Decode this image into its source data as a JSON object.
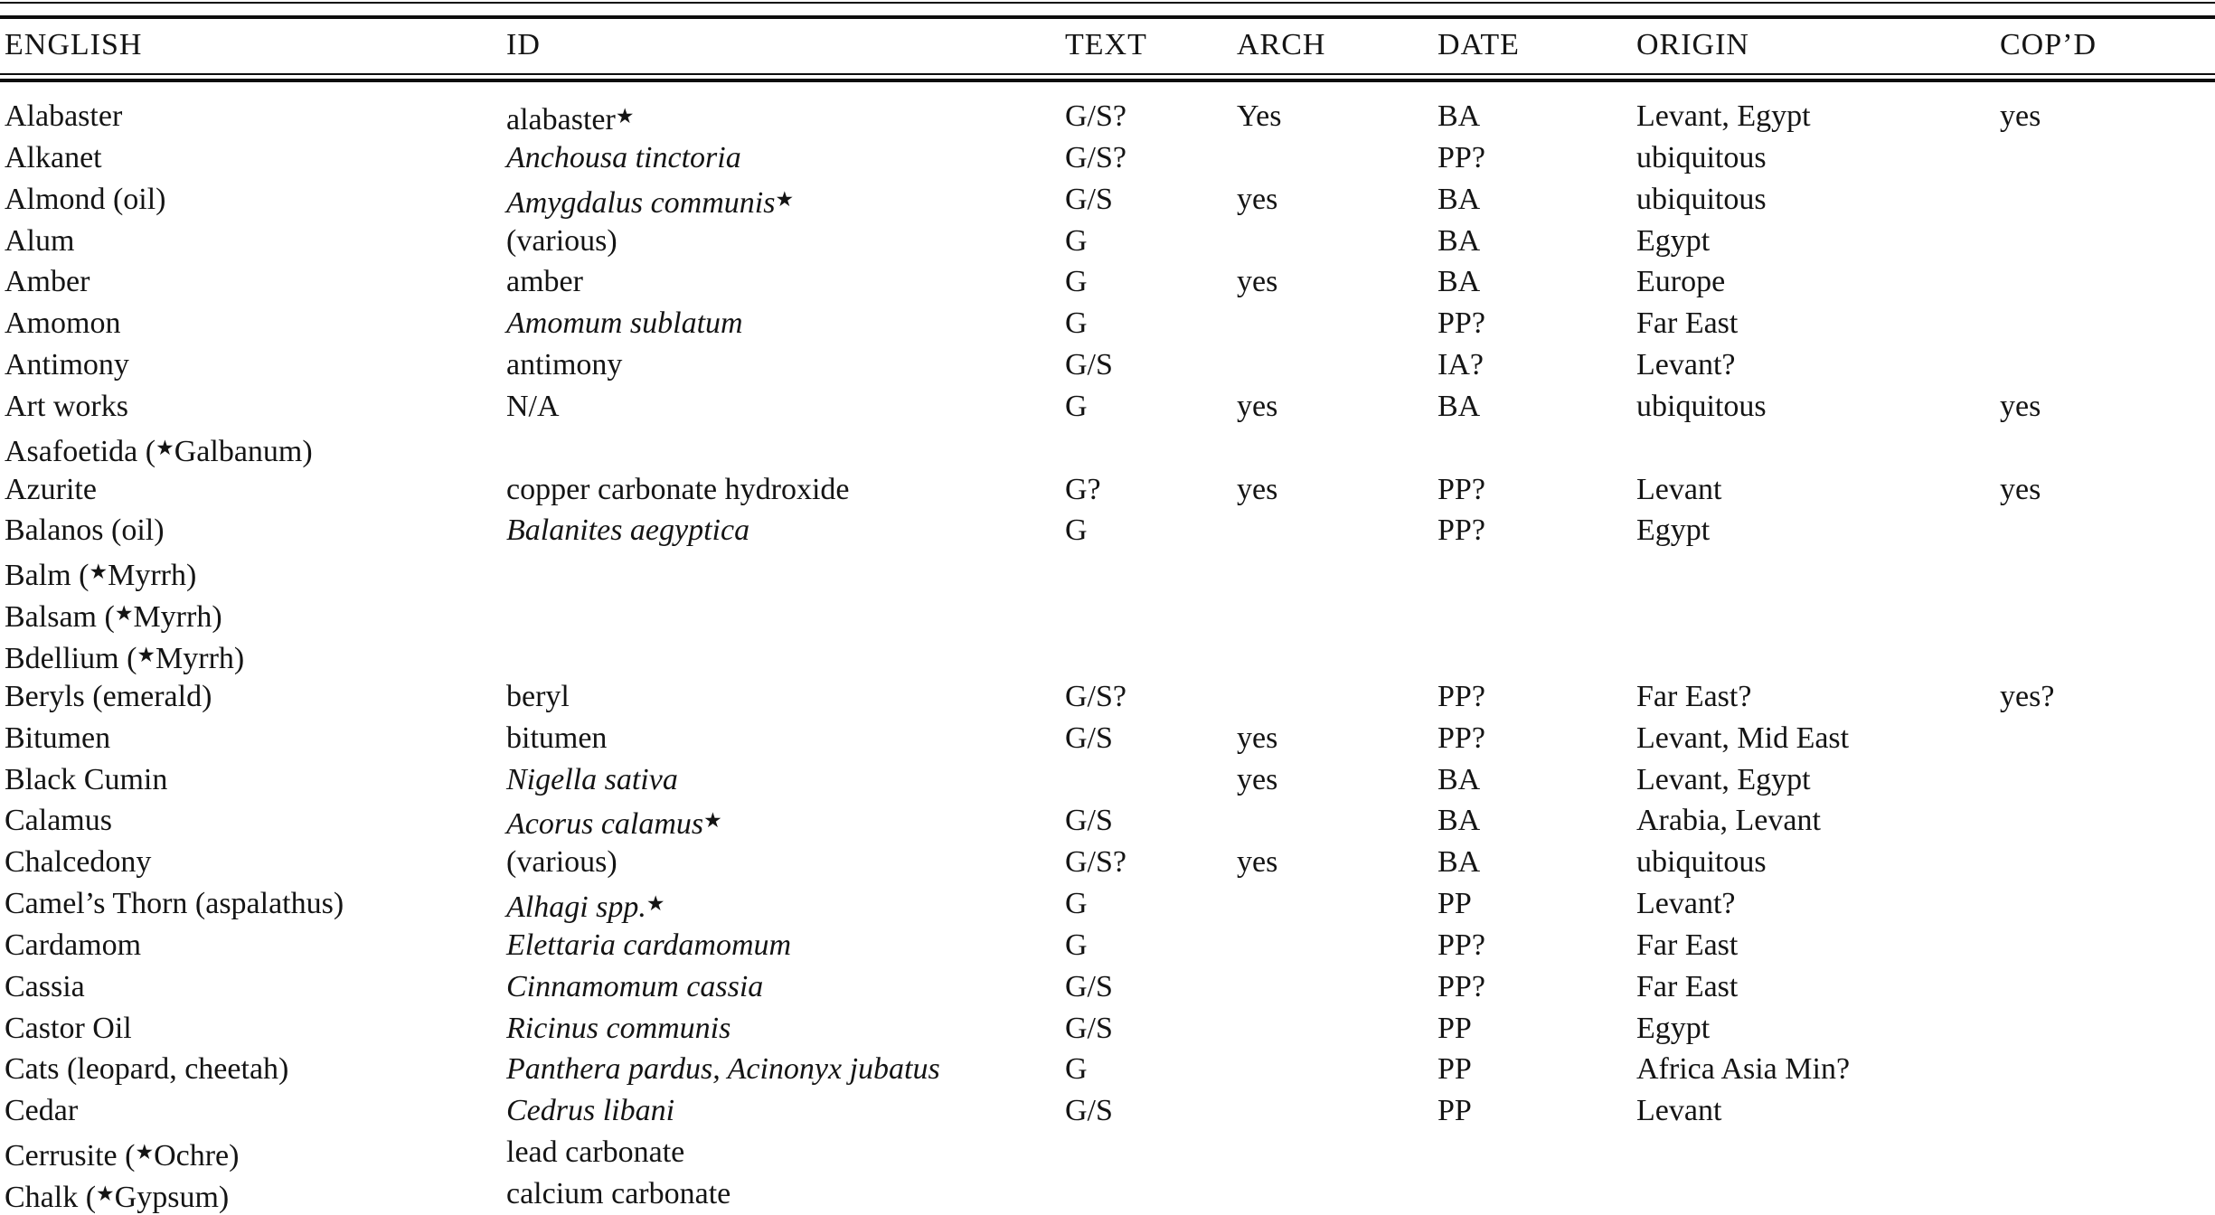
{
  "table": {
    "columns": [
      {
        "key": "english",
        "label": "ENGLISH"
      },
      {
        "key": "id",
        "label": "ID"
      },
      {
        "key": "text",
        "label": "TEXT"
      },
      {
        "key": "arch",
        "label": "ARCH"
      },
      {
        "key": "date",
        "label": "DATE"
      },
      {
        "key": "origin",
        "label": "ORIGIN"
      },
      {
        "key": "copd",
        "label": "COP’D"
      }
    ],
    "star_glyph": "★",
    "rows": [
      {
        "english": "Alabaster",
        "english_star_ref": null,
        "id": "alabaster",
        "id_italic": false,
        "id_star": true,
        "text": "G/S?",
        "arch": "Yes",
        "date": "BA",
        "origin": "Levant, Egypt",
        "copd": "yes"
      },
      {
        "english": "Alkanet",
        "english_star_ref": null,
        "id": "Anchousa tinctoria",
        "id_italic": true,
        "id_star": false,
        "text": "G/S?",
        "arch": "",
        "date": "PP?",
        "origin": "ubiquitous",
        "copd": ""
      },
      {
        "english": "Almond (oil)",
        "english_star_ref": null,
        "id": "Amygdalus communis",
        "id_italic": true,
        "id_star": true,
        "text": "G/S",
        "arch": "yes",
        "date": "BA",
        "origin": "ubiquitous",
        "copd": ""
      },
      {
        "english": "Alum",
        "english_star_ref": null,
        "id": "(various)",
        "id_italic": false,
        "id_star": false,
        "text": "G",
        "arch": "",
        "date": "BA",
        "origin": "Egypt",
        "copd": ""
      },
      {
        "english": "Amber",
        "english_star_ref": null,
        "id": "amber",
        "id_italic": false,
        "id_star": false,
        "text": "G",
        "arch": "yes",
        "date": "BA",
        "origin": "Europe",
        "copd": ""
      },
      {
        "english": "Amomon",
        "english_star_ref": null,
        "id": "Amomum sublatum",
        "id_italic": true,
        "id_star": false,
        "text": "G",
        "arch": "",
        "date": "PP?",
        "origin": "Far East",
        "copd": ""
      },
      {
        "english": "Antimony",
        "english_star_ref": null,
        "id": "antimony",
        "id_italic": false,
        "id_star": false,
        "text": "G/S",
        "arch": "",
        "date": "IA?",
        "origin": "Levant?",
        "copd": ""
      },
      {
        "english": "Art works",
        "english_star_ref": null,
        "id": "N/A",
        "id_italic": false,
        "id_star": false,
        "text": "G",
        "arch": "yes",
        "date": "BA",
        "origin": "ubiquitous",
        "copd": "yes"
      },
      {
        "english": "Asafoetida",
        "english_star_ref": "Galbanum",
        "id": "",
        "id_italic": false,
        "id_star": false,
        "text": "",
        "arch": "",
        "date": "",
        "origin": "",
        "copd": ""
      },
      {
        "english": "Azurite",
        "english_star_ref": null,
        "id": "copper carbonate hydroxide",
        "id_italic": false,
        "id_star": false,
        "text": "G?",
        "arch": "yes",
        "date": "PP?",
        "origin": "Levant",
        "copd": "yes"
      },
      {
        "english": "Balanos (oil)",
        "english_star_ref": null,
        "id": "Balanites aegyptica",
        "id_italic": true,
        "id_star": false,
        "text": "G",
        "arch": "",
        "date": "PP?",
        "origin": "Egypt",
        "copd": ""
      },
      {
        "english": "Balm",
        "english_star_ref": "Myrrh",
        "id": "",
        "id_italic": false,
        "id_star": false,
        "text": "",
        "arch": "",
        "date": "",
        "origin": "",
        "copd": ""
      },
      {
        "english": "Balsam",
        "english_star_ref": "Myrrh",
        "id": "",
        "id_italic": false,
        "id_star": false,
        "text": "",
        "arch": "",
        "date": "",
        "origin": "",
        "copd": ""
      },
      {
        "english": "Bdellium",
        "english_star_ref": "Myrrh",
        "id": "",
        "id_italic": false,
        "id_star": false,
        "text": "",
        "arch": "",
        "date": "",
        "origin": "",
        "copd": ""
      },
      {
        "english": "Beryls (emerald)",
        "english_star_ref": null,
        "id": "beryl",
        "id_italic": false,
        "id_star": false,
        "text": "G/S?",
        "arch": "",
        "date": "PP?",
        "origin": "Far East?",
        "copd": "yes?"
      },
      {
        "english": "Bitumen",
        "english_star_ref": null,
        "id": "bitumen",
        "id_italic": false,
        "id_star": false,
        "text": "G/S",
        "arch": "yes",
        "date": "PP?",
        "origin": "Levant, Mid East",
        "copd": ""
      },
      {
        "english": "Black Cumin",
        "english_star_ref": null,
        "id": "Nigella sativa",
        "id_italic": true,
        "id_star": false,
        "text": "",
        "arch": "yes",
        "date": "BA",
        "origin": "Levant, Egypt",
        "copd": ""
      },
      {
        "english": "Calamus",
        "english_star_ref": null,
        "id": "Acorus calamus",
        "id_italic": true,
        "id_star": true,
        "text": "G/S",
        "arch": "",
        "date": "BA",
        "origin": "Arabia, Levant",
        "copd": ""
      },
      {
        "english": "Chalcedony",
        "english_star_ref": null,
        "id": "(various)",
        "id_italic": false,
        "id_star": false,
        "text": "G/S?",
        "arch": "yes",
        "date": "BA",
        "origin": "ubiquitous",
        "copd": ""
      },
      {
        "english": "Camel’s Thorn (aspalathus)",
        "english_star_ref": null,
        "id": "Alhagi spp.",
        "id_italic": true,
        "id_star": true,
        "text": "G",
        "arch": "",
        "date": "PP",
        "origin": "Levant?",
        "copd": ""
      },
      {
        "english": "Cardamom",
        "english_star_ref": null,
        "id": "Elettaria cardamomum",
        "id_italic": true,
        "id_star": false,
        "text": "G",
        "arch": "",
        "date": "PP?",
        "origin": "Far East",
        "copd": ""
      },
      {
        "english": "Cassia",
        "english_star_ref": null,
        "id": "Cinnamomum cassia",
        "id_italic": true,
        "id_star": false,
        "text": "G/S",
        "arch": "",
        "date": "PP?",
        "origin": "Far East",
        "copd": ""
      },
      {
        "english": "Castor Oil",
        "english_star_ref": null,
        "id": "Ricinus communis",
        "id_italic": true,
        "id_star": false,
        "text": "G/S",
        "arch": "",
        "date": "PP",
        "origin": "Egypt",
        "copd": ""
      },
      {
        "english": "Cats (leopard, cheetah)",
        "english_star_ref": null,
        "id": "Panthera pardus, Acinonyx jubatus",
        "id_italic": true,
        "id_star": false,
        "text": "G",
        "arch": "",
        "date": "PP",
        "origin": "Africa Asia Min?",
        "copd": ""
      },
      {
        "english": "Cedar",
        "english_star_ref": null,
        "id": "Cedrus libani",
        "id_italic": true,
        "id_star": false,
        "text": "G/S",
        "arch": "",
        "date": "PP",
        "origin": "Levant",
        "copd": ""
      },
      {
        "english": "Cerrusite",
        "english_star_ref": "Ochre",
        "id": "lead carbonate",
        "id_italic": false,
        "id_star": false,
        "text": "",
        "arch": "",
        "date": "",
        "origin": "",
        "copd": ""
      },
      {
        "english": "Chalk",
        "english_star_ref": "Gypsum",
        "id": "calcium carbonate",
        "id_italic": false,
        "id_star": false,
        "text": "",
        "arch": "",
        "date": "",
        "origin": "",
        "copd": ""
      }
    ]
  }
}
